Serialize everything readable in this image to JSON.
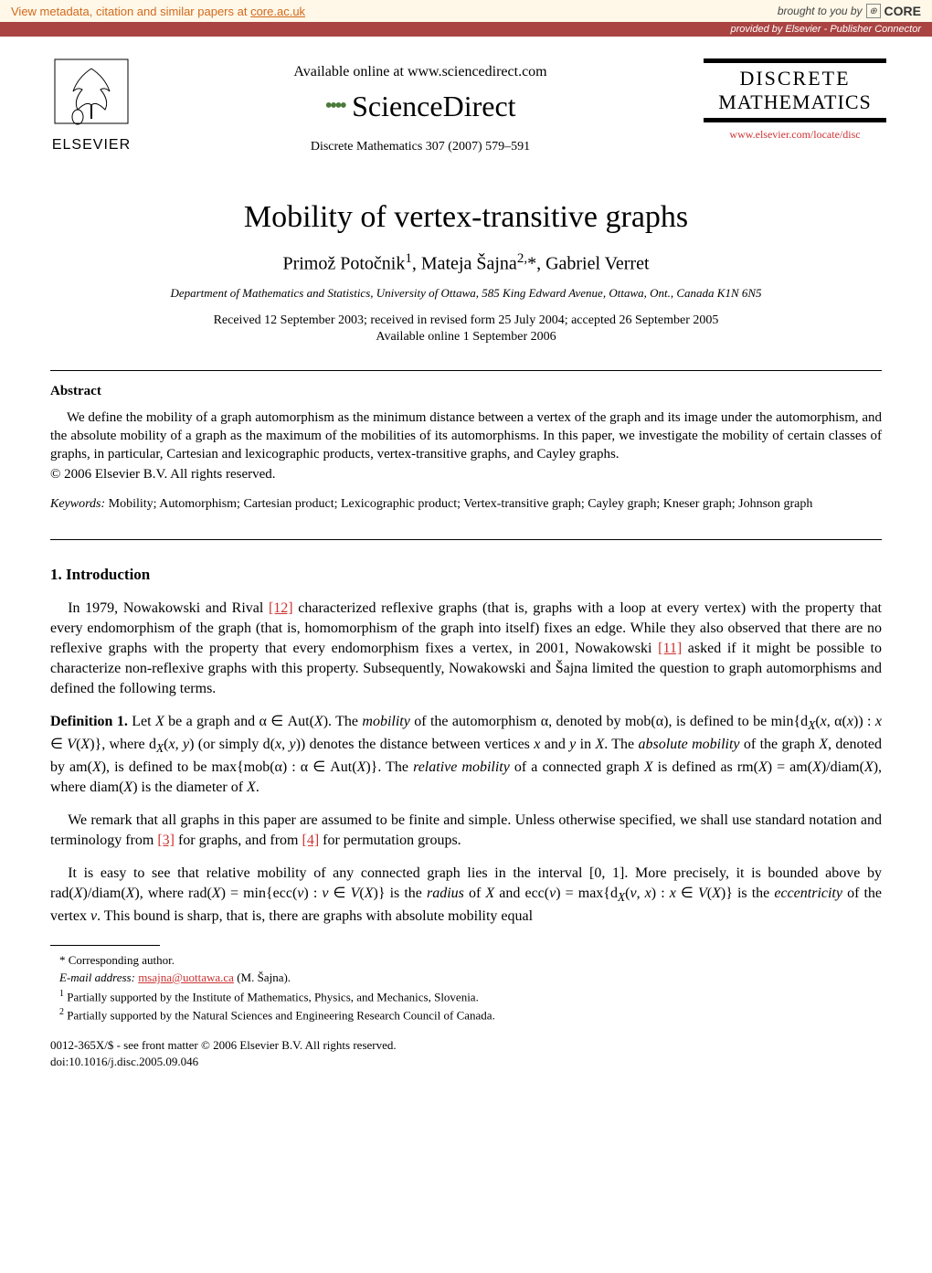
{
  "banner": {
    "left_text": "View metadata, citation and similar papers at ",
    "core_link": "core.ac.uk",
    "brought_by": "brought to you by",
    "core_label": "CORE",
    "provider": "provided by Elsevier - Publisher Connector"
  },
  "header": {
    "elsevier": "ELSEVIER",
    "available_online": "Available online at www.sciencedirect.com",
    "sciencedirect": "ScienceDirect",
    "journal_ref": "Discrete Mathematics 307 (2007) 579–591",
    "journal_name_1": "DISCRETE",
    "journal_name_2": "MATHEMATICS",
    "journal_url": "www.elsevier.com/locate/disc"
  },
  "paper": {
    "title": "Mobility of vertex-transitive graphs",
    "authors_html": "Primož Potočnik<sup>1</sup>, Mateja Šajna<sup>2,</sup>*, Gabriel Verret",
    "affiliation": "Department of Mathematics and Statistics, University of Ottawa, 585 King Edward Avenue, Ottawa, Ont., Canada K1N 6N5",
    "dates_1": "Received 12 September 2003; received in revised form 25 July 2004; accepted 26 September 2005",
    "dates_2": "Available online 1 September 2006"
  },
  "abstract": {
    "heading": "Abstract",
    "text": "We define the mobility of a graph automorphism as the minimum distance between a vertex of the graph and its image under the automorphism, and the absolute mobility of a graph as the maximum of the mobilities of its automorphisms. In this paper, we investigate the mobility of certain classes of graphs, in particular, Cartesian and lexicographic products, vertex-transitive graphs, and Cayley graphs.",
    "copyright": "© 2006 Elsevier B.V. All rights reserved.",
    "keywords_label": "Keywords:",
    "keywords": " Mobility; Automorphism; Cartesian product; Lexicographic product; Vertex-transitive graph; Cayley graph; Kneser graph; Johnson graph"
  },
  "sections": {
    "intro_heading": "1.  Introduction",
    "p1_pre": "In 1979, Nowakowski and Rival ",
    "ref12": "[12]",
    "p1_mid": " characterized reflexive graphs (that is, graphs with a loop at every vertex) with the property that every endomorphism of the graph (that is, homomorphism of the graph into itself) fixes an edge. While they also observed that there are no reflexive graphs with the property that every endomorphism fixes a vertex, in 2001, Nowakowski ",
    "ref11": "[11]",
    "p1_post": " asked if it might be possible to characterize non-reflexive graphs with this property. Subsequently, Nowakowski and Šajna limited the question to graph automorphisms and defined the following terms.",
    "def1_label": "Definition 1.",
    "def1_text": " Let <span class='italic'>X</span> be a graph and α ∈ Aut(<span class='italic'>X</span>). The <span class='italic'>mobility</span> of the automorphism α, denoted by mob(α), is defined to be min{d<sub><span class='italic'>X</span></sub>(<span class='italic'>x</span>, α(<span class='italic'>x</span>)) : <span class='italic'>x</span> ∈ <span class='italic'>V</span>(<span class='italic'>X</span>)}, where d<sub><span class='italic'>X</span></sub>(<span class='italic'>x</span>, <span class='italic'>y</span>) (or simply d(<span class='italic'>x</span>, <span class='italic'>y</span>)) denotes the distance between vertices <span class='italic'>x</span> and <span class='italic'>y</span> in <span class='italic'>X</span>. The <span class='italic'>absolute mobility</span> of the graph <span class='italic'>X</span>, denoted by am(<span class='italic'>X</span>), is defined to be max{mob(α) : α ∈ Aut(<span class='italic'>X</span>)}. The <span class='italic'>relative mobility</span> of a connected graph <span class='italic'>X</span> is defined as rm(<span class='italic'>X</span>) = am(<span class='italic'>X</span>)/diam(<span class='italic'>X</span>), where diam(<span class='italic'>X</span>) is the diameter of <span class='italic'>X</span>.",
    "p2_pre": "We remark that all graphs in this paper are assumed to be finite and simple. Unless otherwise specified, we shall use standard notation and terminology from ",
    "ref3": "[3]",
    "p2_mid": " for graphs, and from ",
    "ref4": "[4]",
    "p2_post": " for permutation groups.",
    "p3": "It is easy to see that relative mobility of any connected graph lies in the interval [0, 1]. More precisely, it is bounded above by rad(<span class='italic'>X</span>)/diam(<span class='italic'>X</span>), where rad(<span class='italic'>X</span>) = min{ecc(<span class='italic'>v</span>) : <span class='italic'>v</span> ∈ <span class='italic'>V</span>(<span class='italic'>X</span>)} is the <span class='italic'>radius</span> of <span class='italic'>X</span> and ecc(<span class='italic'>v</span>) = max{d<sub><span class='italic'>X</span></sub>(<span class='italic'>v</span>, <span class='italic'>x</span>) : <span class='italic'>x</span> ∈ <span class='italic'>V</span>(<span class='italic'>X</span>)} is the <span class='italic'>eccentricity</span> of the vertex <span class='italic'>v</span>. This bound is sharp, that is, there are graphs with absolute mobility equal"
  },
  "footnotes": {
    "corr": "* Corresponding author.",
    "email_label": "E-mail address:",
    "email": "msajna@uottawa.ca",
    "email_suffix": " (M. Šajna).",
    "fn1": "Partially supported by the Institute of Mathematics, Physics, and Mechanics, Slovenia.",
    "fn2": "Partially supported by the Natural Sciences and Engineering Research Council of Canada."
  },
  "bottom": {
    "line1": "0012-365X/$ - see front matter © 2006 Elsevier B.V. All rights reserved.",
    "line2": "doi:10.1016/j.disc.2005.09.046"
  }
}
